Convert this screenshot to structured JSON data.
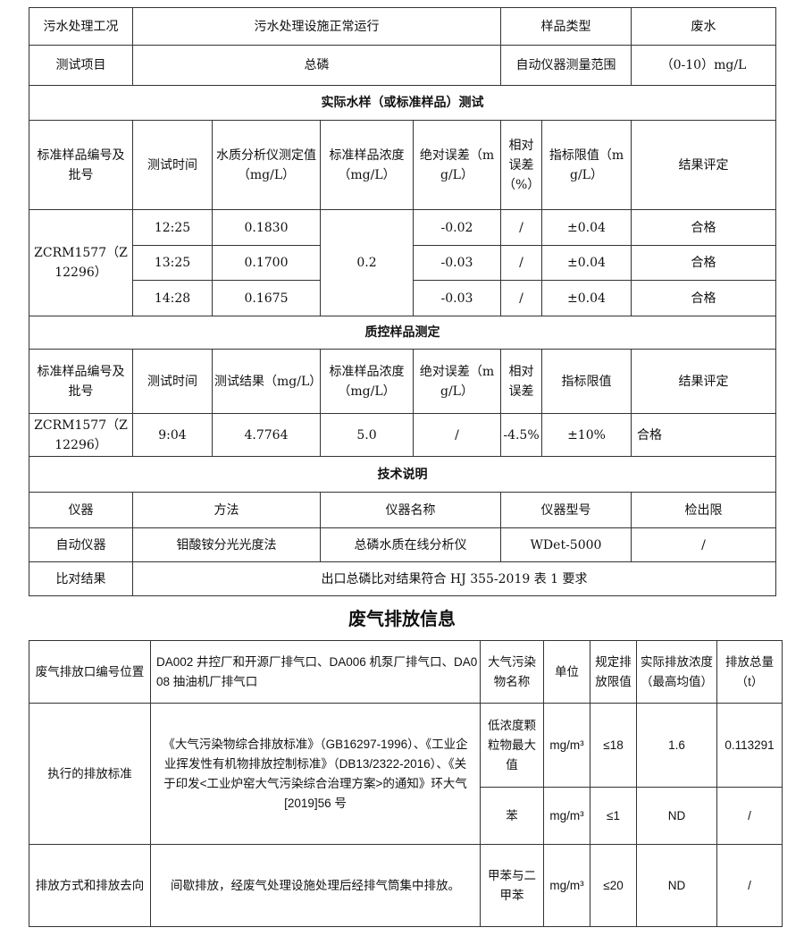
{
  "water": {
    "r1": [
      "污水处理工况",
      "污水处理设施正常运行",
      "样品类型",
      "废水"
    ],
    "r2": [
      "测试项目",
      "总磷",
      "自动仪器测量范围",
      "（0-10）mg/L"
    ],
    "sec1": "实际水样（或标准样品）测试",
    "h1": [
      "标准样品编号及批号",
      "测试时间",
      "水质分析仪测定值（mg/L）",
      "标准样品浓度（mg/L）",
      "绝对误差（mg/L）",
      "相对误差（%）",
      "指标限值（mg/L）",
      "结果评定"
    ],
    "sample_id": "ZCRM1577（Z12296）",
    "conc": "0.2",
    "rows": [
      {
        "time": "12:25",
        "value": "0.1830",
        "abs": "-0.02",
        "rel": "/",
        "limit": "±0.04",
        "result": "合格"
      },
      {
        "time": "13:25",
        "value": "0.1700",
        "abs": "-0.03",
        "rel": "/",
        "limit": "±0.04",
        "result": "合格"
      },
      {
        "time": "14:28",
        "value": "0.1675",
        "abs": "-0.03",
        "rel": "/",
        "limit": "±0.04",
        "result": "合格"
      }
    ],
    "sec2": "质控样品测定",
    "h2": [
      "标准样品编号及批号",
      "测试时间",
      "测试结果（mg/L）",
      "标准样品浓度（mg/L）",
      "绝对误差（mg/L）",
      "相对误差",
      "指标限值",
      "结果评定"
    ],
    "qc": [
      "ZCRM1577（Z12296）",
      "9:04",
      "4.7764",
      "5.0",
      "/",
      "-4.5%",
      "±10%",
      "合格"
    ],
    "sec3": "技术说明",
    "h3": [
      "仪器",
      "方法",
      "仪器名称",
      "仪器型号",
      "检出限"
    ],
    "tech": [
      "自动仪器",
      "钼酸铵分光光度法",
      "总磷水质在线分析仪",
      "WDet-5000",
      "/"
    ],
    "cmp": [
      "比对结果",
      "出口总磷比对结果符合 HJ 355-2019 表 1 要求"
    ]
  },
  "gas": {
    "title": "废气排放信息",
    "h": [
      "废气排放口编号位置",
      "DA002 井控厂和开源厂排气口、DA006 机泵厂排气口、DA008 抽油机厂排气口",
      "大气污染物名称",
      "单位",
      "规定排放限值",
      "实际排放浓度（最高均值）",
      "排放总量（t）"
    ],
    "std_label": "执行的排放标准",
    "std_text": "《大气污染物综合排放标准》（GB16297-1996）、《工业企业挥发性有机物排放控制标准》（DB13/2322-2016）、《关于印发<工业炉窑大气污染综合治理方案>的通知》环大气[2019]56 号",
    "mode_label": "排放方式和排放去向",
    "mode_text": "间歇排放，经废气处理设施处理后经排气筒集中排放。",
    "rows": [
      [
        "低浓度颗粒物最大值",
        "mg/m³",
        "≤18",
        "1.6",
        "0.113291"
      ],
      [
        "苯",
        "mg/m³",
        "≤1",
        "ND",
        "/"
      ],
      [
        "甲苯与二甲苯",
        "mg/m³",
        "≤20",
        "ND",
        "/"
      ]
    ]
  }
}
